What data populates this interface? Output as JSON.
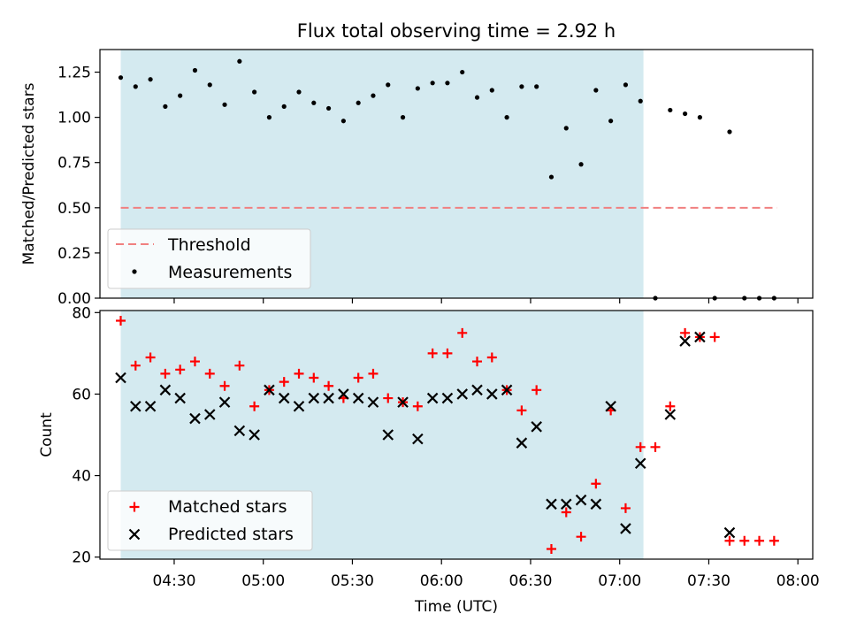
{
  "chart_data": [
    {
      "type": "scatter",
      "title": "Flux total observing time = 2.92 h",
      "xlabel": "",
      "ylabel": "Matched/Predicted stars",
      "ylim": [
        0,
        1.375
      ],
      "xlim": [
        "04:05",
        "08:05"
      ],
      "x_tick_labels": [
        "04:30",
        "05:00",
        "05:30",
        "06:00",
        "06:30",
        "07:00",
        "07:30",
        "08:00"
      ],
      "y_ticks": [
        "0.00",
        "0.25",
        "0.50",
        "0.75",
        "1.00",
        "1.25"
      ],
      "shaded_span": [
        "04:12",
        "07:08"
      ],
      "shaded_color": "#d4eaf0",
      "legend_placement": "lower-left",
      "threshold": {
        "name": "Threshold",
        "value": 0.5,
        "x_start": "04:12",
        "x_end": "07:53",
        "color": "#f08080"
      },
      "series": [
        {
          "name": "Measurements",
          "color": "#000000",
          "x": [
            "04:12",
            "04:17",
            "04:22",
            "04:27",
            "04:32",
            "04:37",
            "04:42",
            "04:47",
            "04:52",
            "04:57",
            "05:02",
            "05:07",
            "05:12",
            "05:17",
            "05:22",
            "05:27",
            "05:32",
            "05:37",
            "05:42",
            "05:47",
            "05:52",
            "05:57",
            "06:02",
            "06:07",
            "06:12",
            "06:17",
            "06:22",
            "06:27",
            "06:32",
            "06:37",
            "06:42",
            "06:47",
            "06:52",
            "06:57",
            "07:02",
            "07:07",
            "07:12",
            "07:17",
            "07:22",
            "07:27",
            "07:32",
            "07:37",
            "07:42",
            "07:47",
            "07:52"
          ],
          "values": [
            1.22,
            1.17,
            1.21,
            1.06,
            1.12,
            1.26,
            1.18,
            1.07,
            1.31,
            1.14,
            1.0,
            1.06,
            1.14,
            1.08,
            1.05,
            0.98,
            1.08,
            1.12,
            1.18,
            1.0,
            1.16,
            1.19,
            1.19,
            1.25,
            1.11,
            1.15,
            1.0,
            1.17,
            1.17,
            0.67,
            0.94,
            0.74,
            1.15,
            0.98,
            1.18,
            1.09,
            0.0,
            1.04,
            1.02,
            1.0,
            0.0,
            0.92,
            0.0,
            0.0,
            0.0
          ]
        }
      ]
    },
    {
      "type": "scatter",
      "title": "",
      "xlabel": "Time (UTC)",
      "ylabel": "Count",
      "ylim": [
        19.5,
        80.5
      ],
      "xlim": [
        "04:05",
        "08:05"
      ],
      "x_tick_labels": [
        "04:30",
        "05:00",
        "05:30",
        "06:00",
        "06:30",
        "07:00",
        "07:30",
        "08:00"
      ],
      "y_ticks": [
        "20",
        "40",
        "60",
        "80"
      ],
      "shaded_span": [
        "04:12",
        "07:08"
      ],
      "shaded_color": "#d4eaf0",
      "legend_placement": "lower-left",
      "series": [
        {
          "name": "Matched stars",
          "color": "#ff0000",
          "marker": "plus",
          "x": [
            "04:12",
            "04:17",
            "04:22",
            "04:27",
            "04:32",
            "04:37",
            "04:42",
            "04:47",
            "04:52",
            "04:57",
            "05:02",
            "05:07",
            "05:12",
            "05:17",
            "05:22",
            "05:27",
            "05:32",
            "05:37",
            "05:42",
            "05:47",
            "05:52",
            "05:57",
            "06:02",
            "06:07",
            "06:12",
            "06:17",
            "06:22",
            "06:27",
            "06:32",
            "06:37",
            "06:42",
            "06:47",
            "06:52",
            "06:57",
            "07:02",
            "07:07",
            "07:12",
            "07:17",
            "07:22",
            "07:27",
            "07:32",
            "07:37",
            "07:42",
            "07:47",
            "07:52"
          ],
          "values": [
            78,
            67,
            69,
            65,
            66,
            68,
            65,
            62,
            67,
            57,
            61,
            63,
            65,
            64,
            62,
            59,
            64,
            65,
            59,
            58,
            57,
            70,
            70,
            75,
            68,
            69,
            61,
            56,
            61,
            22,
            31,
            25,
            38,
            56,
            32,
            47,
            47,
            57,
            75,
            74,
            74,
            24,
            24,
            24,
            24
          ]
        },
        {
          "name": "Predicted stars",
          "color": "#000000",
          "marker": "x",
          "x": [
            "04:12",
            "04:17",
            "04:22",
            "04:27",
            "04:32",
            "04:37",
            "04:42",
            "04:47",
            "04:52",
            "04:57",
            "05:02",
            "05:07",
            "05:12",
            "05:17",
            "05:22",
            "05:27",
            "05:32",
            "05:37",
            "05:42",
            "05:47",
            "05:52",
            "05:57",
            "06:02",
            "06:07",
            "06:12",
            "06:17",
            "06:22",
            "06:27",
            "06:32",
            "06:37",
            "06:42",
            "06:47",
            "06:52",
            "06:57",
            "07:02",
            "07:07",
            "07:17",
            "07:22",
            "07:27",
            "07:37"
          ],
          "values": [
            64,
            57,
            57,
            61,
            59,
            54,
            55,
            58,
            51,
            50,
            61,
            59,
            57,
            59,
            59,
            60,
            59,
            58,
            50,
            58,
            49,
            59,
            59,
            60,
            61,
            60,
            61,
            48,
            52,
            33,
            33,
            34,
            33,
            57,
            27,
            43,
            55,
            73,
            74,
            26
          ]
        }
      ]
    }
  ]
}
